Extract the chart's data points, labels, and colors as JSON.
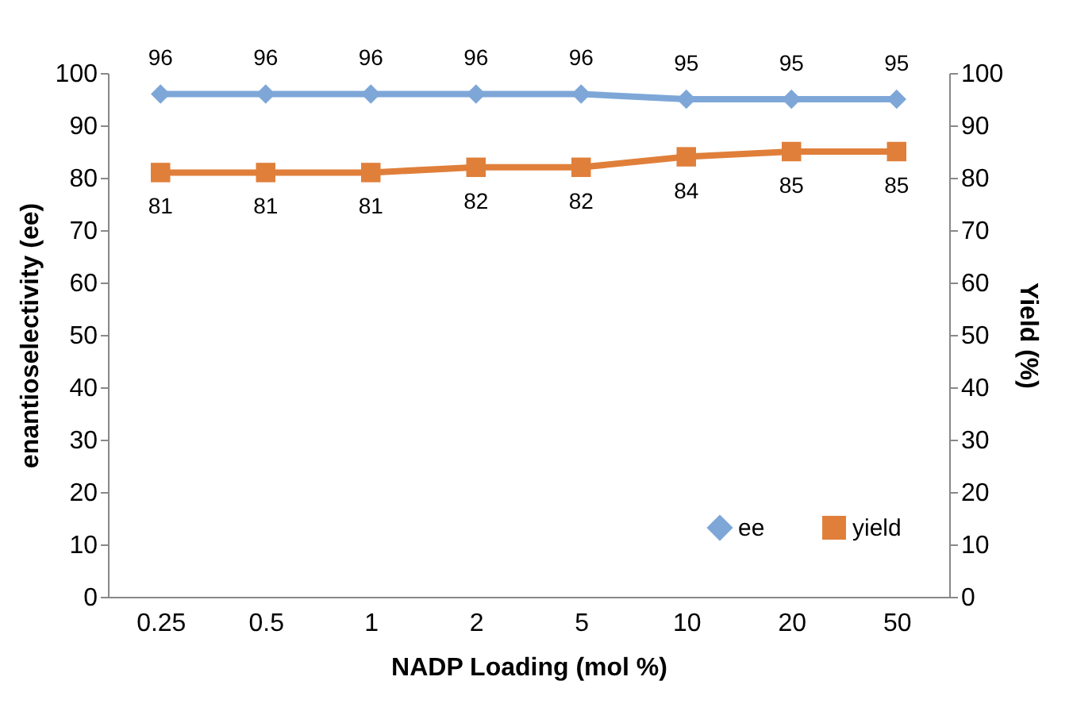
{
  "chart_data": {
    "type": "line",
    "xlabel": "NADP Loading (mol %)",
    "ylabel": "enantioselectivity (ee)",
    "y2label": "Yield (%)",
    "categories": [
      "0.25",
      "0.5",
      "1",
      "2",
      "5",
      "10",
      "20",
      "50"
    ],
    "series": [
      {
        "name": "ee",
        "color": "#7ea7d8",
        "marker": "diamond",
        "values": [
          96,
          96,
          96,
          96,
          96,
          95,
          95,
          95
        ]
      },
      {
        "name": "yield",
        "color": "#e07f3a",
        "marker": "square",
        "axis": "y2",
        "values": [
          81,
          81,
          81,
          82,
          82,
          84,
          85,
          85
        ]
      }
    ],
    "ylim": [
      0,
      100
    ],
    "yticks": [
      0,
      10,
      20,
      30,
      40,
      50,
      60,
      70,
      80,
      90,
      100
    ],
    "y2lim": [
      0,
      100
    ],
    "y2ticks": [
      0,
      10,
      20,
      30,
      40,
      50,
      60,
      70,
      80,
      90,
      100
    ],
    "data_labels": true,
    "grid": false,
    "legend": "bottom right"
  }
}
